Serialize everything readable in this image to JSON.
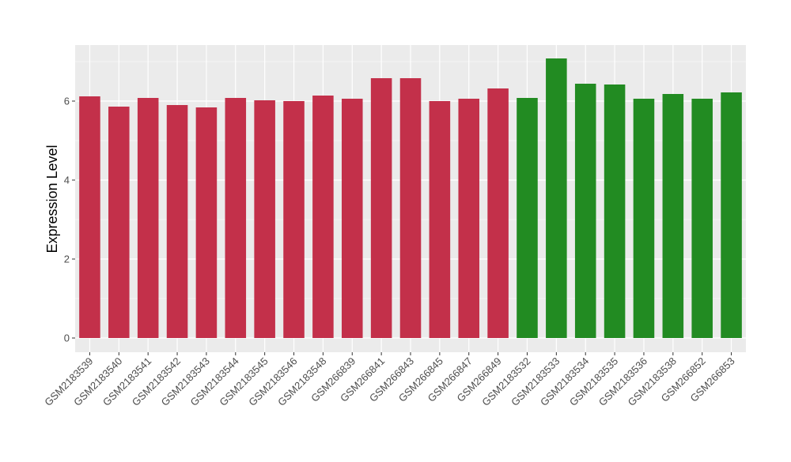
{
  "chart_data": {
    "type": "bar",
    "ylabel": "Expression Level",
    "xlabel": "",
    "ylim": [
      0,
      7.4
    ],
    "yticks": [
      0,
      2,
      4,
      6
    ],
    "grid": true,
    "legend": "none",
    "colors": {
      "red": "#c3304a",
      "green": "#228b22",
      "panel": "#ebebeb",
      "grid": "#ffffff"
    },
    "categories": [
      "GSM2183539",
      "GSM2183540",
      "GSM2183541",
      "GSM2183542",
      "GSM2183543",
      "GSM2183544",
      "GSM2183545",
      "GSM2183546",
      "GSM2183548",
      "GSM266839",
      "GSM266841",
      "GSM266843",
      "GSM266845",
      "GSM266847",
      "GSM266849",
      "GSM2183532",
      "GSM2183533",
      "GSM2183534",
      "GSM2183535",
      "GSM2183536",
      "GSM2183538",
      "GSM266852",
      "GSM266853"
    ],
    "values": [
      6.12,
      5.86,
      6.08,
      5.9,
      5.84,
      6.08,
      6.02,
      6.0,
      6.14,
      6.06,
      6.58,
      6.58,
      6.0,
      6.06,
      6.32,
      6.08,
      7.08,
      6.44,
      6.42,
      6.06,
      6.18,
      6.06,
      6.22
    ],
    "bar_colors": [
      "red",
      "red",
      "red",
      "red",
      "red",
      "red",
      "red",
      "red",
      "red",
      "red",
      "red",
      "red",
      "red",
      "red",
      "red",
      "green",
      "green",
      "green",
      "green",
      "green",
      "green",
      "green",
      "green"
    ]
  }
}
